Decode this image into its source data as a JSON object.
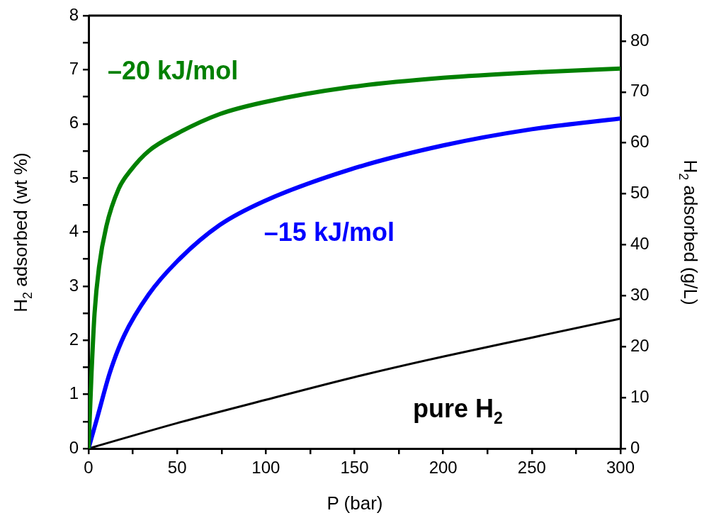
{
  "chart_data": {
    "type": "line",
    "xlabel": "P (bar)",
    "ylabel": "H$_{2}$ adsorbed (wt %)",
    "y2label": "H$_{2}$ adsorbed (g/L)",
    "xlim": [
      0,
      300
    ],
    "xticks": [
      0,
      {
        "value": 25,
        "label": null
      },
      50,
      {
        "value": 75,
        "label": null
      },
      100,
      {
        "value": 125,
        "label": null
      },
      150,
      {
        "value": 175,
        "label": null
      },
      200,
      {
        "value": 225,
        "label": null
      },
      250,
      {
        "value": 275,
        "label": null
      },
      300
    ],
    "ylim": [
      0,
      8
    ],
    "yticks": [
      0,
      {
        "value": 0.5,
        "label": null
      },
      1,
      {
        "value": 1.5,
        "label": null
      },
      2,
      {
        "value": 2.5,
        "label": null
      },
      3,
      {
        "value": 3.5,
        "label": null
      },
      4,
      {
        "value": 4.5,
        "label": null
      },
      5,
      {
        "value": 5.5,
        "label": null
      },
      6,
      {
        "value": 6.5,
        "label": null
      },
      7,
      {
        "value": 7.5,
        "label": null
      },
      8
    ],
    "y2lim": [
      0,
      85
    ],
    "y2ticks": [
      0,
      10,
      20,
      30,
      40,
      50,
      60,
      70,
      80
    ],
    "grid": false,
    "legend": false,
    "marker": "none",
    "line_style": "solid",
    "series": [
      {
        "name": "–20 kJ/mol",
        "color": "#008000",
        "x": [
          0,
          1.7,
          3.4,
          5.9,
          10,
          17,
          24,
          34,
          50,
          74,
          99,
          148,
          200,
          250,
          300
        ],
        "values": [
          0,
          1.4,
          2.5,
          3.35,
          4.1,
          4.8,
          5.15,
          5.5,
          5.82,
          6.18,
          6.4,
          6.68,
          6.85,
          6.95,
          7.02
        ]
      },
      {
        "name": "–15 kJ/mol",
        "color": "#0000ff",
        "x": [
          0,
          5,
          12,
          20,
          34,
          50,
          74,
          99,
          148,
          200,
          250,
          300
        ],
        "values": [
          0,
          0.58,
          1.4,
          2.08,
          2.85,
          3.46,
          4.13,
          4.57,
          5.16,
          5.6,
          5.9,
          6.1
        ]
      },
      {
        "name": "pure H$_{2}$",
        "color": "#000000",
        "x": [
          0,
          50,
          100,
          150,
          200,
          250,
          300
        ],
        "values": [
          0,
          0.47,
          0.9,
          1.32,
          1.7,
          2.05,
          2.4
        ]
      }
    ]
  }
}
